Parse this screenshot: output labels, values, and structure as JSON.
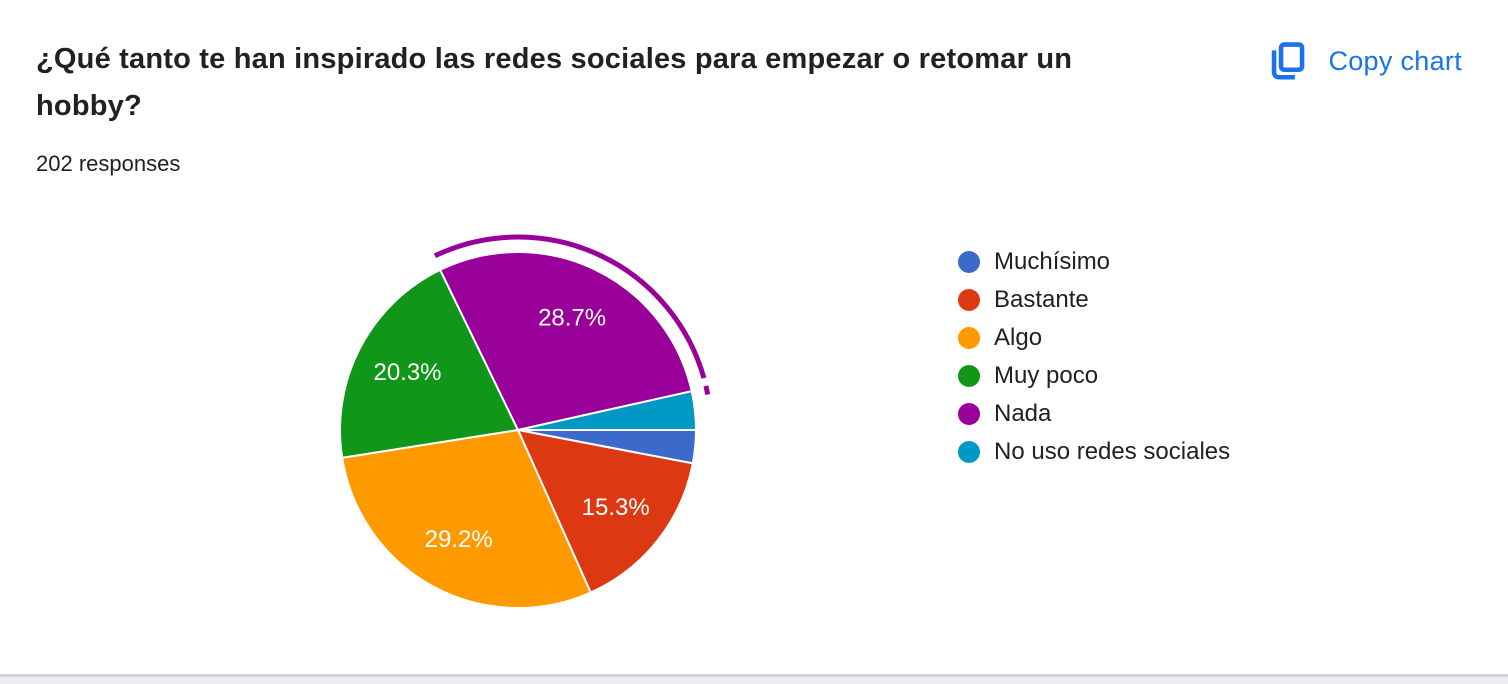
{
  "header": {
    "copy_chart_label": "Copy chart",
    "copy_icon": "copy-icon",
    "accent_color": "#1a73e8"
  },
  "chart_data": {
    "type": "pie",
    "title": "¿Qué tanto te han inspirado las redes sociales para empezar o retomar un hobby?",
    "subtitle": "202 responses",
    "total_responses": 202,
    "legend_position": "right",
    "start_angle_deg": 0,
    "direction": "clockwise",
    "slice_border_color": "#ffffff",
    "label_color": "#ffffff",
    "slices": [
      {
        "label": "Muchísimo",
        "percent": 3.0,
        "color": "#3b6acb",
        "value_label": "",
        "highlighted": false
      },
      {
        "label": "Bastante",
        "percent": 15.3,
        "color": "#dc3912",
        "value_label": "15.3%",
        "highlighted": false
      },
      {
        "label": "Algo",
        "percent": 29.2,
        "color": "#ff9900",
        "value_label": "29.2%",
        "highlighted": false
      },
      {
        "label": "Muy poco",
        "percent": 20.3,
        "color": "#109618",
        "value_label": "20.3%",
        "highlighted": false
      },
      {
        "label": "Nada",
        "percent": 28.7,
        "color": "#990099",
        "value_label": "28.7%",
        "highlighted": true
      },
      {
        "label": "No uso redes sociales",
        "percent": 3.5,
        "color": "#0099c6",
        "value_label": "",
        "highlighted": false
      }
    ]
  }
}
